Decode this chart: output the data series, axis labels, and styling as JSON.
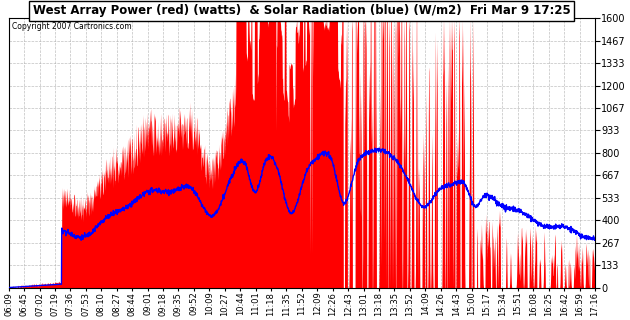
{
  "title": "West Array Power (red) (watts)  & Solar Radiation (blue) (W/m2)  Fri Mar 9 17:25",
  "copyright": "Copyright 2007 Cartronics.com",
  "y_ticks": [
    0.0,
    133.3,
    266.7,
    400.0,
    533.3,
    666.6,
    800.0,
    933.3,
    1066.6,
    1199.9,
    1333.3,
    1466.6,
    1599.9
  ],
  "x_labels": [
    "06:09",
    "06:45",
    "07:02",
    "07:19",
    "07:36",
    "07:53",
    "08:10",
    "08:27",
    "08:44",
    "09:01",
    "09:18",
    "09:35",
    "09:52",
    "10:09",
    "10:27",
    "10:44",
    "11:01",
    "11:18",
    "11:35",
    "11:52",
    "12:09",
    "12:26",
    "12:43",
    "13:01",
    "13:18",
    "13:35",
    "13:52",
    "14:09",
    "14:26",
    "14:43",
    "15:00",
    "15:17",
    "15:34",
    "15:51",
    "16:08",
    "16:25",
    "16:42",
    "16:59",
    "17:16"
  ],
  "bg_color": "#ffffff",
  "grid_color": "#b0b0b0",
  "bar_color": "#ff0000",
  "line_color": "#0000ff",
  "ymax": 1599.9
}
